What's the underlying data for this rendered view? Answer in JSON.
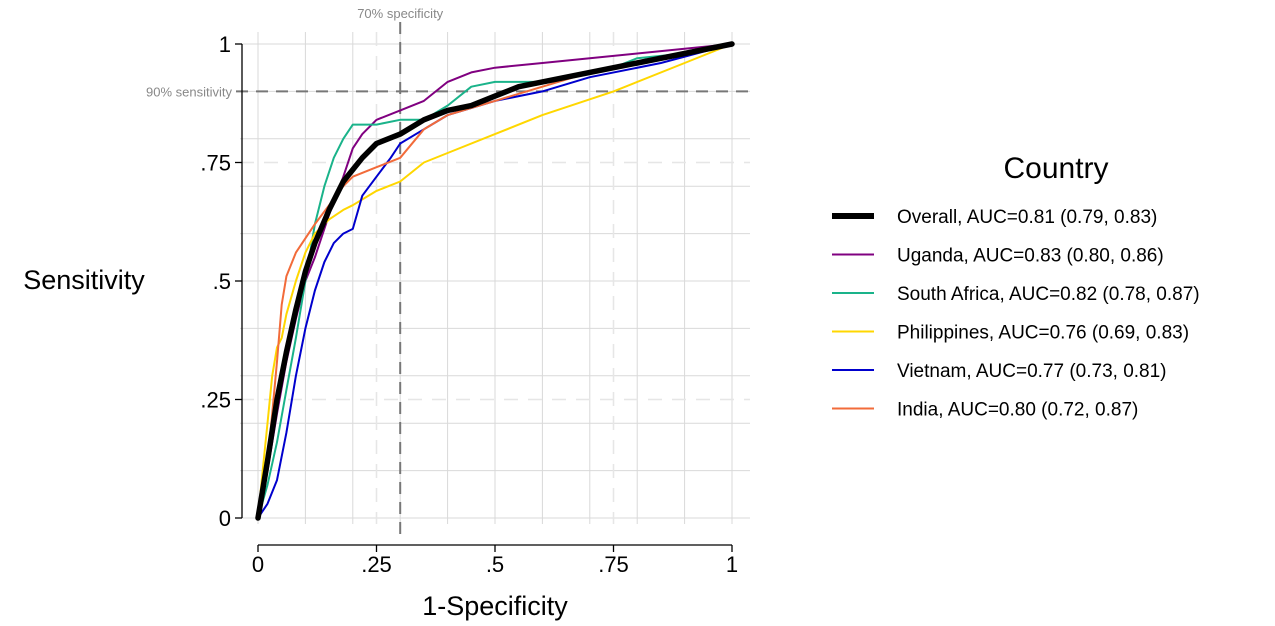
{
  "chart_data": {
    "type": "line",
    "title": "",
    "xlabel": "1-Specificity",
    "ylabel": "Sensitivity",
    "xlim": [
      0,
      1
    ],
    "ylim": [
      0,
      1
    ],
    "grid": true,
    "xticks": [
      {
        "value": 0,
        "label": "0"
      },
      {
        "value": 0.25,
        "label": ".25"
      },
      {
        "value": 0.5,
        "label": ".5"
      },
      {
        "value": 0.75,
        "label": ".75"
      },
      {
        "value": 1,
        "label": "1"
      }
    ],
    "yticks": [
      {
        "value": 0,
        "label": "0"
      },
      {
        "value": 0.25,
        "label": ".25"
      },
      {
        "value": 0.5,
        "label": ".5"
      },
      {
        "value": 0.75,
        "label": ".75"
      },
      {
        "value": 1,
        "label": "1"
      }
    ],
    "reference_lines": [
      {
        "axis": "x",
        "value": 0.3,
        "label": "70% specificity"
      },
      {
        "axis": "y",
        "value": 0.9,
        "label": "90% sensitivity"
      }
    ],
    "legend": {
      "title": "Country",
      "placement": "right"
    },
    "series": [
      {
        "name": "Overall, AUC=0.81 (0.79, 0.83)",
        "color": "#000000",
        "weight": "thick",
        "x": [
          0,
          0.02,
          0.04,
          0.06,
          0.08,
          0.1,
          0.12,
          0.15,
          0.18,
          0.22,
          0.25,
          0.3,
          0.35,
          0.4,
          0.45,
          0.5,
          0.55,
          0.6,
          0.7,
          0.8,
          0.9,
          1
        ],
        "y": [
          0,
          0.12,
          0.25,
          0.35,
          0.44,
          0.52,
          0.58,
          0.65,
          0.71,
          0.76,
          0.79,
          0.81,
          0.84,
          0.86,
          0.87,
          0.89,
          0.91,
          0.92,
          0.94,
          0.96,
          0.98,
          1
        ]
      },
      {
        "name": "Uganda, AUC=0.83 (0.80, 0.86)",
        "color": "#800080",
        "weight": "normal",
        "x": [
          0,
          0.02,
          0.04,
          0.06,
          0.08,
          0.1,
          0.12,
          0.15,
          0.18,
          0.2,
          0.22,
          0.25,
          0.3,
          0.35,
          0.4,
          0.45,
          0.5,
          0.6,
          0.7,
          0.8,
          0.9,
          1
        ],
        "y": [
          0,
          0.1,
          0.22,
          0.33,
          0.42,
          0.5,
          0.55,
          0.64,
          0.72,
          0.78,
          0.81,
          0.84,
          0.86,
          0.88,
          0.92,
          0.94,
          0.95,
          0.96,
          0.97,
          0.98,
          0.99,
          1
        ]
      },
      {
        "name": "South Africa, AUC=0.82 (0.78, 0.87)",
        "color": "#1ab38a",
        "weight": "normal",
        "x": [
          0,
          0.02,
          0.04,
          0.06,
          0.08,
          0.1,
          0.12,
          0.14,
          0.16,
          0.18,
          0.2,
          0.25,
          0.3,
          0.35,
          0.4,
          0.45,
          0.5,
          0.6,
          0.75,
          0.8,
          0.9,
          1
        ],
        "y": [
          0,
          0.07,
          0.16,
          0.27,
          0.38,
          0.5,
          0.62,
          0.7,
          0.76,
          0.8,
          0.83,
          0.83,
          0.84,
          0.84,
          0.87,
          0.91,
          0.92,
          0.92,
          0.95,
          0.97,
          0.98,
          1
        ]
      },
      {
        "name": "Philippines, AUC=0.76 (0.69, 0.83)",
        "color": "#ffd700",
        "weight": "normal",
        "x": [
          0,
          0.01,
          0.02,
          0.03,
          0.04,
          0.05,
          0.06,
          0.08,
          0.1,
          0.12,
          0.15,
          0.18,
          0.2,
          0.25,
          0.3,
          0.35,
          0.4,
          0.5,
          0.6,
          0.75,
          0.9,
          1
        ],
        "y": [
          0,
          0.1,
          0.2,
          0.3,
          0.36,
          0.38,
          0.43,
          0.5,
          0.56,
          0.6,
          0.63,
          0.65,
          0.66,
          0.69,
          0.71,
          0.75,
          0.77,
          0.81,
          0.85,
          0.9,
          0.96,
          1
        ]
      },
      {
        "name": "Vietnam, AUC=0.77 (0.73, 0.81)",
        "color": "#0000cd",
        "weight": "normal",
        "x": [
          0,
          0.02,
          0.04,
          0.06,
          0.08,
          0.1,
          0.12,
          0.14,
          0.16,
          0.18,
          0.2,
          0.22,
          0.25,
          0.28,
          0.3,
          0.35,
          0.4,
          0.5,
          0.6,
          0.7,
          0.85,
          1
        ],
        "y": [
          0,
          0.03,
          0.08,
          0.18,
          0.3,
          0.4,
          0.48,
          0.54,
          0.58,
          0.6,
          0.61,
          0.68,
          0.72,
          0.76,
          0.79,
          0.82,
          0.85,
          0.88,
          0.9,
          0.93,
          0.96,
          1
        ]
      },
      {
        "name": "India, AUC=0.80 (0.72, 0.87)",
        "color": "#f26b3a",
        "weight": "normal",
        "x": [
          0,
          0.01,
          0.02,
          0.03,
          0.04,
          0.05,
          0.06,
          0.08,
          0.1,
          0.12,
          0.15,
          0.18,
          0.2,
          0.25,
          0.3,
          0.35,
          0.4,
          0.5,
          0.6,
          0.7,
          0.85,
          1
        ],
        "y": [
          0,
          0.05,
          0.12,
          0.22,
          0.33,
          0.45,
          0.51,
          0.56,
          0.59,
          0.62,
          0.66,
          0.7,
          0.72,
          0.74,
          0.76,
          0.82,
          0.85,
          0.88,
          0.91,
          0.94,
          0.97,
          1
        ]
      }
    ]
  }
}
